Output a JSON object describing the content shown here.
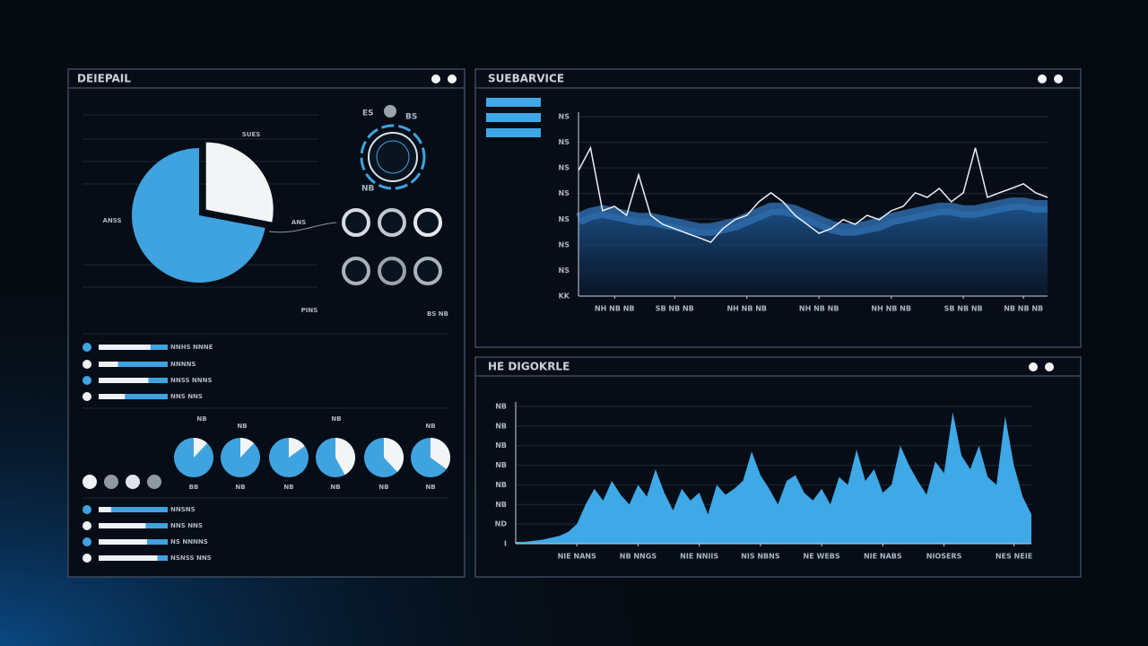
{
  "panels": [
    {
      "title": "DEIEPAIL"
    },
    {
      "title": "SUEBARVICE"
    },
    {
      "title": "HE DIGOKRLE"
    }
  ],
  "dial": {
    "labels": [
      "ES",
      "BS",
      "NB"
    ]
  },
  "progress": {
    "top": [
      {
        "label": "NNHS NNNE",
        "value": 75
      },
      {
        "label": "NNNNS",
        "value": 28
      },
      {
        "label": "NNSS NNNS",
        "value": 72
      },
      {
        "label": "NNS NNS",
        "value": 38
      }
    ],
    "bottom": [
      {
        "label": "NNSNS",
        "value": 18
      },
      {
        "label": "NNS NNS",
        "value": 68
      },
      {
        "label": "NS NNNNS",
        "value": 70
      },
      {
        "label": "NSNSS NNS",
        "value": 85
      }
    ]
  },
  "gauge_tops": [
    "NB",
    "NB",
    "NB",
    "NB"
  ],
  "gauges": [
    {
      "label": "BB",
      "value": 12
    },
    {
      "label": "NB",
      "value": 12
    },
    {
      "label": "NB",
      "value": 15
    },
    {
      "label": "NB",
      "value": 42
    },
    {
      "label": "NB",
      "value": 38
    },
    {
      "label": "NB",
      "value": 35
    }
  ],
  "chart_data": [
    {
      "type": "pie",
      "categories": [
        "SUES",
        "ANSS"
      ],
      "values": [
        28,
        72
      ],
      "colors": [
        "#f2f4f6",
        "#3fa3e0"
      ],
      "annotations": [
        "ANS",
        "PINS",
        "BS NB"
      ]
    },
    {
      "type": "line",
      "grid": true,
      "x": [
        0,
        1,
        2,
        3,
        4,
        5,
        6,
        7,
        8,
        9,
        10,
        11,
        12,
        13,
        14,
        15,
        16,
        17,
        18,
        19,
        20,
        21,
        22,
        23,
        24,
        25,
        26,
        27,
        28,
        29,
        30,
        31,
        32,
        33,
        34,
        35,
        36,
        37,
        38,
        39
      ],
      "xlim": [
        0,
        39
      ],
      "xticks": [
        {
          "value": 3,
          "label": "NH NB NB"
        },
        {
          "value": 8,
          "label": "SB NB NB"
        },
        {
          "value": 14,
          "label": "NH NB NB"
        },
        {
          "value": 20,
          "label": "NH NB NB"
        },
        {
          "value": 26,
          "label": "NH NB NB"
        },
        {
          "value": 32,
          "label": "SB NB NB"
        },
        {
          "value": 37,
          "label": "NB NB NB"
        }
      ],
      "ylim": [
        0,
        7
      ],
      "yticks": [
        {
          "value": 0,
          "label": "KK"
        },
        {
          "value": 1,
          "label": "NS"
        },
        {
          "value": 2,
          "label": "NS"
        },
        {
          "value": 3,
          "label": "NS"
        },
        {
          "value": 4,
          "label": "NS"
        },
        {
          "value": 5,
          "label": "NS"
        },
        {
          "value": 6,
          "label": "NS"
        },
        {
          "value": 7,
          "label": "NS"
        }
      ],
      "series": [
        {
          "color": "#e8eef4",
          "values": [
            4.9,
            5.78,
            3.33,
            3.5,
            3.15,
            4.73,
            3.15,
            2.8,
            2.63,
            2.45,
            2.28,
            2.1,
            2.63,
            2.98,
            3.15,
            3.68,
            4.03,
            3.68,
            3.15,
            2.8,
            2.45,
            2.63,
            2.98,
            2.8,
            3.15,
            2.98,
            3.33,
            3.5,
            4.03,
            3.85,
            4.2,
            3.68,
            4.03,
            5.78,
            3.85,
            4.03,
            4.2,
            4.38,
            4.03,
            3.85
          ]
        },
        {
          "color": "#2f6fb0",
          "values": [
            3.0,
            3.2,
            3.3,
            3.2,
            3.1,
            3.0,
            3.0,
            2.9,
            2.8,
            2.7,
            2.6,
            2.6,
            2.7,
            2.8,
            3.0,
            3.2,
            3.4,
            3.4,
            3.3,
            3.1,
            2.9,
            2.7,
            2.6,
            2.6,
            2.7,
            2.8,
            3.0,
            3.1,
            3.2,
            3.3,
            3.4,
            3.4,
            3.3,
            3.3,
            3.4,
            3.5,
            3.6,
            3.6,
            3.5,
            3.5
          ]
        }
      ]
    },
    {
      "type": "area",
      "grid": true,
      "color": "#3fa8e6",
      "x": [
        0,
        1,
        2,
        3,
        4,
        5,
        6,
        7,
        8,
        9,
        10,
        11,
        12,
        13,
        14,
        15,
        16,
        17,
        18,
        19,
        20,
        21,
        22,
        23,
        24,
        25,
        26,
        27,
        28,
        29,
        30,
        31,
        32,
        33,
        34,
        35,
        36,
        37,
        38,
        39,
        40,
        41,
        42,
        43,
        44,
        45,
        46,
        47,
        48,
        49,
        50,
        51,
        52,
        53,
        54,
        55,
        56,
        57,
        58,
        59
      ],
      "xlim": [
        0,
        59
      ],
      "xticks": [
        {
          "value": 7,
          "label": "NIE NANS"
        },
        {
          "value": 14,
          "label": "NB NNGS"
        },
        {
          "value": 21,
          "label": "NIE NNIIS"
        },
        {
          "value": 28,
          "label": "NIS NBNS"
        },
        {
          "value": 35,
          "label": "NE WEBS"
        },
        {
          "value": 42,
          "label": "NIE NABS"
        },
        {
          "value": 49,
          "label": "NIOSERS"
        },
        {
          "value": 57,
          "label": "NES NEIE"
        }
      ],
      "ylim": [
        0,
        7
      ],
      "yticks": [
        {
          "value": 0,
          "label": "I"
        },
        {
          "value": 1,
          "label": "ND"
        },
        {
          "value": 2,
          "label": "NB"
        },
        {
          "value": 3,
          "label": "NB"
        },
        {
          "value": 4,
          "label": "NB"
        },
        {
          "value": 5,
          "label": "NB"
        },
        {
          "value": 6,
          "label": "NB"
        },
        {
          "value": 7,
          "label": "NB"
        }
      ],
      "values": [
        0.1,
        0.1,
        0.15,
        0.2,
        0.3,
        0.4,
        0.6,
        1.0,
        2.0,
        2.8,
        2.2,
        3.2,
        2.5,
        2.0,
        3.0,
        2.4,
        3.8,
        2.6,
        1.7,
        2.8,
        2.2,
        2.6,
        1.5,
        3.0,
        2.5,
        2.8,
        3.2,
        4.7,
        3.5,
        2.8,
        2.0,
        3.2,
        3.5,
        2.6,
        2.2,
        2.8,
        2.0,
        3.4,
        3.0,
        4.8,
        3.2,
        3.8,
        2.6,
        3.0,
        5.0,
        4.0,
        3.2,
        2.5,
        4.2,
        3.6,
        6.7,
        4.5,
        3.8,
        5.0,
        3.4,
        3.0,
        6.5,
        4.0,
        2.4,
        1.5
      ]
    }
  ]
}
